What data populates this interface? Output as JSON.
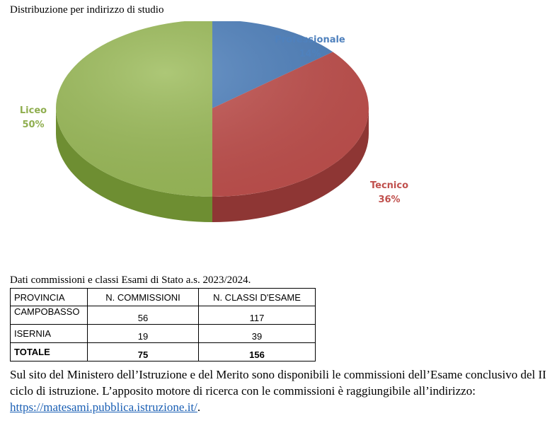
{
  "chart_title": "Distribuzione per indirizzo di studio",
  "chart_data": {
    "type": "pie",
    "title": "Distribuzione per indirizzo di studio",
    "slices": [
      {
        "label": "Professionale",
        "value": 14,
        "value_label": "14%",
        "color": "#4F81BD",
        "side": "#3A6392"
      },
      {
        "label": "Tecnico",
        "value": 36,
        "value_label": "36%",
        "color": "#C0504D",
        "side": "#8E3634"
      },
      {
        "label": "Liceo",
        "value": 50,
        "value_label": "50%",
        "color": "#9BBB59",
        "side": "#6E8E32"
      }
    ]
  },
  "table": {
    "caption": "Dati commissioni e classi Esami di Stato a.s. 2023/2024.",
    "headers": [
      "PROVINCIA",
      "N. COMMISSIONI",
      "N. CLASSI D'ESAME"
    ],
    "rows": [
      [
        "CAMPOBASSO",
        "56",
        "117"
      ],
      [
        "ISERNIA",
        "19",
        "39"
      ]
    ],
    "total": [
      "TOTALE",
      "75",
      "156"
    ]
  },
  "paragraph": {
    "text_before": "Sul sito del Ministero dell’Istruzione e del Merito sono disponibili le commissioni dell’Esame conclusivo del II ciclo di istruzione. L’apposito motore di ricerca con le commissioni è raggiungibile all’indirizzo: ",
    "link": "https://matesami.pubblica.istruzione.it/",
    "text_after": "."
  }
}
